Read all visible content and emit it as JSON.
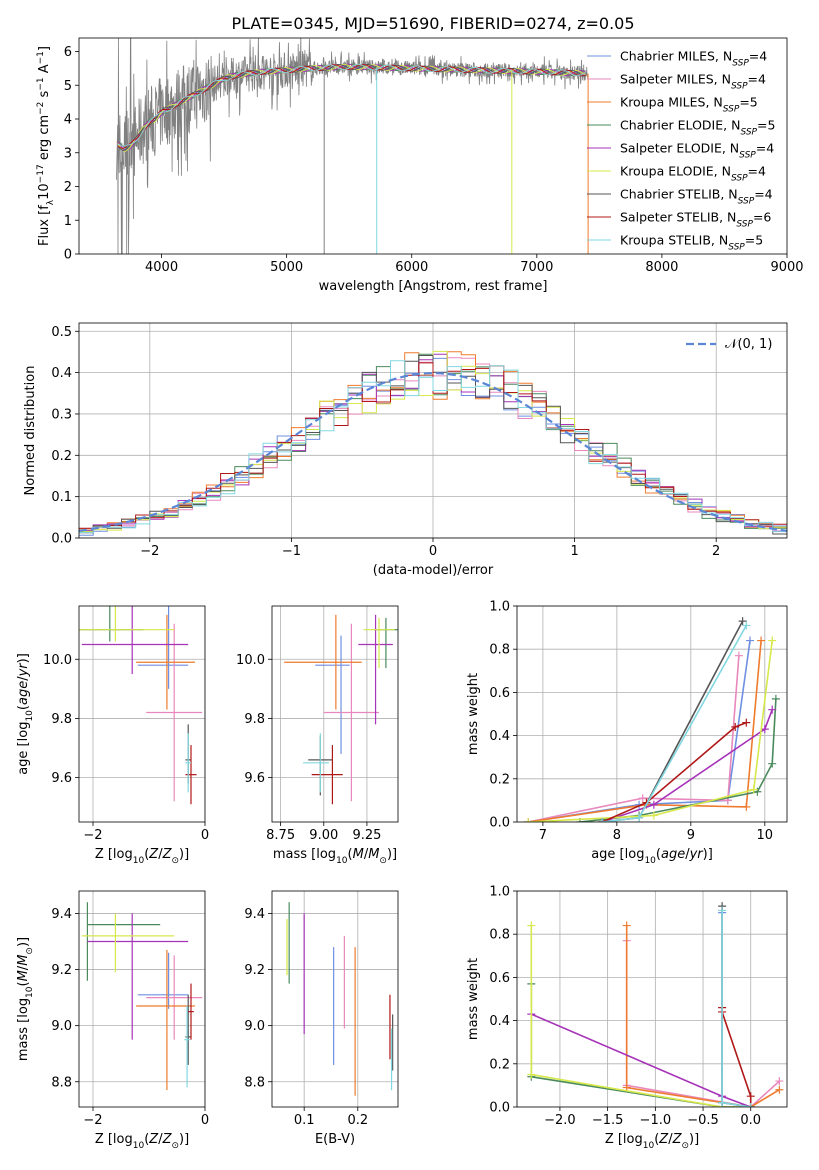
{
  "figure_title": "PLATE=0345, MJD=51690, FIBERID=0274, z=0.05",
  "colors": {
    "chabrier_miles": "#6f8fe0",
    "salpeter_miles": "#e888bd",
    "kroupa_miles": "#ee7b2e",
    "chabrier_elodie": "#4a8a5c",
    "salpeter_elodie": "#a633b8",
    "kroupa_elodie": "#d6e84a",
    "chabrier_stelib": "#555555",
    "salpeter_stelib": "#b01818",
    "kroupa_stelib": "#82d8e0",
    "data": "#808080"
  },
  "chart_data": [
    {
      "id": "spectrum",
      "type": "line",
      "title": "PLATE=0345, MJD=51690, FIBERID=0274, z=0.05",
      "xlabel": "wavelength [Angstrom, rest frame]",
      "ylabel_parts": [
        "Flux [f",
        "λ",
        "10",
        "−17",
        " erg cm",
        "−2",
        " s",
        "−1",
        " A",
        "−1",
        "]"
      ],
      "xlim": [
        3340,
        9000
      ],
      "ylim": [
        0,
        6.4
      ],
      "xticks": [
        4000,
        5000,
        6000,
        7000,
        8000,
        9000
      ],
      "yticks": [
        0,
        1,
        2,
        3,
        4,
        5,
        6
      ],
      "continuum": {
        "x": [
          3640,
          3700,
          3750,
          3800,
          3850,
          3900,
          3950,
          4000,
          4100,
          4200,
          4300,
          4400,
          4500,
          4600,
          4800,
          5000,
          5200,
          5500,
          6000,
          6500,
          7000,
          7400
        ],
        "y": [
          3.3,
          3.1,
          3.2,
          3.4,
          3.7,
          3.9,
          4.0,
          4.2,
          4.4,
          4.6,
          4.8,
          5.0,
          5.2,
          5.3,
          5.4,
          5.45,
          5.5,
          5.55,
          5.5,
          5.45,
          5.4,
          5.35
        ]
      },
      "legend_loc": "upper right",
      "legend": [
        {
          "label": "Chabrier MILES",
          "n": "4",
          "color_key": "chabrier_miles"
        },
        {
          "label": "Salpeter MILES",
          "n": "4",
          "color_key": "salpeter_miles"
        },
        {
          "label": "Kroupa MILES",
          "n": "5",
          "color_key": "kroupa_miles"
        },
        {
          "label": "Chabrier ELODIE",
          "n": "5",
          "color_key": "chabrier_elodie"
        },
        {
          "label": "Salpeter ELODIE",
          "n": "4",
          "color_key": "salpeter_elodie"
        },
        {
          "label": "Kroupa ELODIE",
          "n": "4",
          "color_key": "kroupa_elodie"
        },
        {
          "label": "Chabrier STELIB",
          "n": "4",
          "color_key": "chabrier_stelib"
        },
        {
          "label": "Salpeter STELIB",
          "n": "6",
          "color_key": "salpeter_stelib"
        },
        {
          "label": "Kroupa STELIB",
          "n": "5",
          "color_key": "kroupa_stelib"
        }
      ]
    },
    {
      "id": "residuals",
      "type": "line",
      "xlabel": "(data-model)/error",
      "ylabel": "Normed distribution",
      "xlim": [
        -2.5,
        2.5
      ],
      "ylim": [
        0,
        0.52
      ],
      "xticks": [
        -2,
        -1,
        0,
        1,
        2
      ],
      "yticks": [
        0.0,
        0.1,
        0.2,
        0.3,
        0.4,
        0.5
      ],
      "grid": true,
      "bin_width": 0.1,
      "legend": {
        "label": "𝒩(0, 1)",
        "linestyle": "dashed",
        "color": "#5b86d6",
        "loc": "upper right"
      }
    },
    {
      "id": "age_vs_Z",
      "type": "scatter",
      "xlabel": "Z [log10(Z/Z☉)]",
      "ylabel": "age  [log10(age/yr)]",
      "xlim": [
        -2.25,
        0.0
      ],
      "ylim": [
        9.45,
        10.18
      ],
      "xticks": [
        -2,
        0
      ],
      "yticks": [
        9.6,
        9.8,
        10.0
      ],
      "grid": true,
      "points": [
        {
          "key": "chabrier_miles",
          "x": -0.65,
          "y": 9.98,
          "xerr": [
            0.55,
            0.35
          ],
          "yerr": [
            0.08,
            0.3
          ]
        },
        {
          "key": "salpeter_miles",
          "x": -0.55,
          "y": 9.82,
          "xerr": [
            0.5,
            0.5
          ],
          "yerr": [
            0.3,
            0.3
          ]
        },
        {
          "key": "kroupa_miles",
          "x": -0.68,
          "y": 9.99,
          "xerr": [
            0.55,
            0.5
          ],
          "yerr": [
            0.16,
            0.16
          ]
        },
        {
          "key": "chabrier_elodie",
          "x": -1.7,
          "y": 10.1,
          "xerr": [
            0.6,
            0.6
          ],
          "yerr": [
            0.04,
            0.13
          ]
        },
        {
          "key": "salpeter_elodie",
          "x": -1.3,
          "y": 10.05,
          "xerr": [
            0.9,
            1.0
          ],
          "yerr": [
            0.1,
            0.27
          ]
        },
        {
          "key": "kroupa_elodie",
          "x": -1.6,
          "y": 10.1,
          "xerr": [
            0.65,
            1.05
          ],
          "yerr": [
            0.04,
            0.13
          ]
        },
        {
          "key": "chabrier_stelib",
          "x": -0.3,
          "y": 9.66,
          "xerr": [
            0.05,
            0.05
          ],
          "yerr": [
            0.08,
            0.12
          ]
        },
        {
          "key": "salpeter_stelib",
          "x": -0.25,
          "y": 9.61,
          "xerr": [
            0.1,
            0.1
          ],
          "yerr": [
            0.1,
            0.1
          ]
        },
        {
          "key": "kroupa_stelib",
          "x": -0.3,
          "y": 9.65,
          "xerr": [
            0.05,
            0.05
          ],
          "yerr": [
            0.1,
            0.1
          ]
        }
      ]
    },
    {
      "id": "age_vs_mass",
      "type": "scatter",
      "xlabel": "mass [log10(M/M☉)]",
      "ylabel": "",
      "xlim": [
        8.7,
        9.43
      ],
      "ylim": [
        9.45,
        10.18
      ],
      "xticks": [
        8.75,
        9.0,
        9.25
      ],
      "yticks": [
        9.6,
        9.8,
        10.0
      ],
      "grid": true,
      "points": [
        {
          "key": "chabrier_miles",
          "x": 9.1,
          "y": 9.98,
          "xerr": [
            0.15,
            0.05
          ],
          "yerr": [
            0.3,
            0.1
          ]
        },
        {
          "key": "salpeter_miles",
          "x": 9.16,
          "y": 9.82,
          "xerr": [
            0.16,
            0.16
          ],
          "yerr": [
            0.3,
            0.3
          ]
        },
        {
          "key": "kroupa_miles",
          "x": 9.07,
          "y": 9.99,
          "xerr": [
            0.3,
            0.15
          ],
          "yerr": [
            0.16,
            0.16
          ]
        },
        {
          "key": "chabrier_elodie",
          "x": 9.36,
          "y": 10.1,
          "xerr": [
            0.07,
            0.07
          ],
          "yerr": [
            0.13,
            0.04
          ]
        },
        {
          "key": "salpeter_elodie",
          "x": 9.3,
          "y": 10.05,
          "xerr": [
            0.1,
            0.1
          ],
          "yerr": [
            0.27,
            0.1
          ]
        },
        {
          "key": "kroupa_elodie",
          "x": 9.32,
          "y": 10.1,
          "xerr": [
            0.09,
            0.09
          ],
          "yerr": [
            0.13,
            0.04
          ]
        },
        {
          "key": "chabrier_stelib",
          "x": 8.98,
          "y": 9.66,
          "xerr": [
            0.07,
            0.07
          ],
          "yerr": [
            0.12,
            0.08
          ]
        },
        {
          "key": "salpeter_stelib",
          "x": 9.05,
          "y": 9.61,
          "xerr": [
            0.12,
            0.06
          ],
          "yerr": [
            0.1,
            0.1
          ]
        },
        {
          "key": "kroupa_stelib",
          "x": 8.98,
          "y": 9.65,
          "xerr": [
            0.1,
            0.05
          ],
          "yerr": [
            0.1,
            0.1
          ]
        }
      ]
    },
    {
      "id": "mass_weight_vs_age",
      "type": "line",
      "xlabel": "age  [log10(age/yr)]",
      "ylabel": "mass weight",
      "xlim": [
        6.65,
        10.3
      ],
      "ylim": [
        0,
        1.0
      ],
      "xticks": [
        7,
        8,
        9,
        10
      ],
      "yticks": [
        0.0,
        0.2,
        0.4,
        0.6,
        0.8,
        1.0
      ],
      "grid": true,
      "series": [
        {
          "key": "chabrier_miles",
          "x": [
            6.8,
            8.3,
            9.5,
            9.8
          ],
          "y": [
            0.0,
            0.08,
            0.1,
            0.84
          ]
        },
        {
          "key": "salpeter_miles",
          "x": [
            6.8,
            8.35,
            9.5,
            9.65
          ],
          "y": [
            0.0,
            0.11,
            0.1,
            0.77
          ]
        },
        {
          "key": "kroupa_miles",
          "x": [
            6.8,
            8.4,
            9.75,
            9.95
          ],
          "y": [
            0.0,
            0.08,
            0.07,
            0.84
          ]
        },
        {
          "key": "chabrier_elodie",
          "x": [
            7.5,
            8.3,
            9.9,
            10.1,
            10.15
          ],
          "y": [
            0.0,
            0.03,
            0.14,
            0.27,
            0.57
          ]
        },
        {
          "key": "salpeter_elodie",
          "x": [
            7.8,
            8.5,
            10.0,
            10.1
          ],
          "y": [
            0.0,
            0.08,
            0.43,
            0.52
          ]
        },
        {
          "key": "kroupa_elodie",
          "x": [
            6.8,
            8.5,
            9.85,
            10.1
          ],
          "y": [
            0.0,
            0.03,
            0.15,
            0.84
          ]
        },
        {
          "key": "chabrier_stelib",
          "x": [
            7.8,
            8.3,
            9.7
          ],
          "y": [
            0.0,
            0.02,
            0.93
          ]
        },
        {
          "key": "salpeter_stelib",
          "x": [
            7.8,
            8.4,
            9.6,
            9.75
          ],
          "y": [
            0.0,
            0.09,
            0.44,
            0.46
          ]
        },
        {
          "key": "kroupa_stelib",
          "x": [
            7.8,
            8.3,
            9.75
          ],
          "y": [
            0.0,
            0.02,
            0.91
          ]
        }
      ]
    },
    {
      "id": "mass_vs_Z",
      "type": "scatter",
      "xlabel": "Z [log10(Z/Z☉)]",
      "ylabel": "mass [log10(M/M☉)]",
      "xlim": [
        -2.25,
        0.0
      ],
      "ylim": [
        8.71,
        9.48
      ],
      "xticks": [
        -2,
        0
      ],
      "yticks": [
        8.8,
        9.0,
        9.2,
        9.4
      ],
      "grid": true,
      "points": [
        {
          "key": "chabrier_miles",
          "x": -0.65,
          "y": 9.11,
          "xerr": [
            0.55,
            0.35
          ],
          "yerr": [
            0.05,
            0.15
          ]
        },
        {
          "key": "salpeter_miles",
          "x": -0.55,
          "y": 9.1,
          "xerr": [
            0.5,
            0.5
          ],
          "yerr": [
            0.15,
            0.15
          ]
        },
        {
          "key": "kroupa_miles",
          "x": -0.68,
          "y": 9.07,
          "xerr": [
            0.55,
            0.5
          ],
          "yerr": [
            0.3,
            0.2
          ]
        },
        {
          "key": "chabrier_elodie",
          "x": -2.1,
          "y": 9.36,
          "xerr": [
            0.0,
            1.3
          ],
          "yerr": [
            0.2,
            0.08
          ]
        },
        {
          "key": "salpeter_elodie",
          "x": -1.3,
          "y": 9.3,
          "xerr": [
            0.8,
            1.0
          ],
          "yerr": [
            0.35,
            0.1
          ]
        },
        {
          "key": "kroupa_elodie",
          "x": -1.6,
          "y": 9.32,
          "xerr": [
            0.6,
            1.05
          ],
          "yerr": [
            0.13,
            0.08
          ]
        },
        {
          "key": "chabrier_stelib",
          "x": -0.3,
          "y": 8.96,
          "xerr": [
            0.05,
            0.05
          ],
          "yerr": [
            0.1,
            0.15
          ]
        },
        {
          "key": "salpeter_stelib",
          "x": -0.25,
          "y": 9.05,
          "xerr": [
            0.05,
            0.05
          ],
          "yerr": [
            0.1,
            0.1
          ]
        },
        {
          "key": "kroupa_stelib",
          "x": -0.32,
          "y": 8.95,
          "xerr": [
            0.05,
            0.05
          ],
          "yerr": [
            0.17,
            0.12
          ]
        }
      ]
    },
    {
      "id": "mass_vs_EBV",
      "type": "scatter",
      "xlabel": "E(B-V)",
      "ylabel": "",
      "xlim": [
        0.04,
        0.275
      ],
      "ylim": [
        8.71,
        9.48
      ],
      "xticks": [
        0.1,
        0.2
      ],
      "yticks": [
        8.8,
        9.0,
        9.2,
        9.4
      ],
      "grid": true,
      "points": [
        {
          "key": "chabrier_miles",
          "x": 0.155,
          "y": 9.07,
          "yerr": [
            0.21,
            0.21
          ]
        },
        {
          "key": "salpeter_miles",
          "x": 0.175,
          "y": 9.15,
          "yerr": [
            0.16,
            0.17
          ]
        },
        {
          "key": "kroupa_miles",
          "x": 0.195,
          "y": 9.0,
          "yerr": [
            0.25,
            0.28
          ]
        },
        {
          "key": "chabrier_elodie",
          "x": 0.072,
          "y": 9.3,
          "yerr": [
            0.15,
            0.14
          ]
        },
        {
          "key": "salpeter_elodie",
          "x": 0.1,
          "y": 9.19,
          "yerr": [
            0.22,
            0.21
          ]
        },
        {
          "key": "kroupa_elodie",
          "x": 0.068,
          "y": 9.28,
          "yerr": [
            0.1,
            0.1
          ]
        },
        {
          "key": "chabrier_stelib",
          "x": 0.265,
          "y": 8.94,
          "yerr": [
            0.1,
            0.1
          ]
        },
        {
          "key": "salpeter_stelib",
          "x": 0.26,
          "y": 9.0,
          "yerr": [
            0.12,
            0.11
          ]
        },
        {
          "key": "kroupa_stelib",
          "x": 0.263,
          "y": 8.88,
          "yerr": [
            0.11,
            0.11
          ]
        }
      ]
    },
    {
      "id": "mass_weight_vs_Z",
      "type": "line",
      "xlabel": "Z [log10(Z/Z☉)]",
      "ylabel": "mass weight",
      "xlim": [
        -2.45,
        0.38
      ],
      "ylim": [
        0,
        1.0
      ],
      "xticks": [
        -2.0,
        -1.5,
        -1.0,
        -0.5,
        0.0
      ],
      "yticks": [
        0.0,
        0.2,
        0.4,
        0.6,
        0.8,
        1.0
      ],
      "grid": true,
      "series": [
        {
          "key": "chabrier_miles",
          "x": [
            -0.3,
            -0.3,
            0.0
          ],
          "y": [
            0.9,
            0.0,
            0.0
          ]
        },
        {
          "key": "salpeter_miles",
          "x": [
            -1.3,
            -1.3,
            0.0,
            0.3
          ],
          "y": [
            0.77,
            0.1,
            0.0,
            0.12
          ]
        },
        {
          "key": "kroupa_miles",
          "x": [
            -1.3,
            -1.3,
            0.0,
            0.3
          ],
          "y": [
            0.84,
            0.09,
            0.0,
            0.08
          ]
        },
        {
          "key": "chabrier_elodie",
          "x": [
            -2.3,
            -2.3,
            -0.3,
            0.0
          ],
          "y": [
            0.57,
            0.14,
            0.0,
            0.0
          ]
        },
        {
          "key": "salpeter_elodie",
          "x": [
            -2.3,
            -0.3,
            0.0
          ],
          "y": [
            0.43,
            0.05,
            0.0
          ]
        },
        {
          "key": "kroupa_elodie",
          "x": [
            -2.3,
            -2.3,
            -0.3,
            0.0
          ],
          "y": [
            0.84,
            0.15,
            0.0,
            0.0
          ]
        },
        {
          "key": "chabrier_stelib",
          "x": [
            -0.3,
            -0.3,
            0.0
          ],
          "y": [
            0.93,
            0.02,
            0.0
          ]
        },
        {
          "key": "salpeter_stelib",
          "x": [
            -0.3,
            -0.3,
            0.0,
            0.0
          ],
          "y": [
            0.46,
            0.44,
            0.05,
            0.0
          ]
        },
        {
          "key": "kroupa_stelib",
          "x": [
            -0.3,
            -0.3,
            0.0
          ],
          "y": [
            0.91,
            0.02,
            0.0
          ]
        }
      ]
    }
  ]
}
